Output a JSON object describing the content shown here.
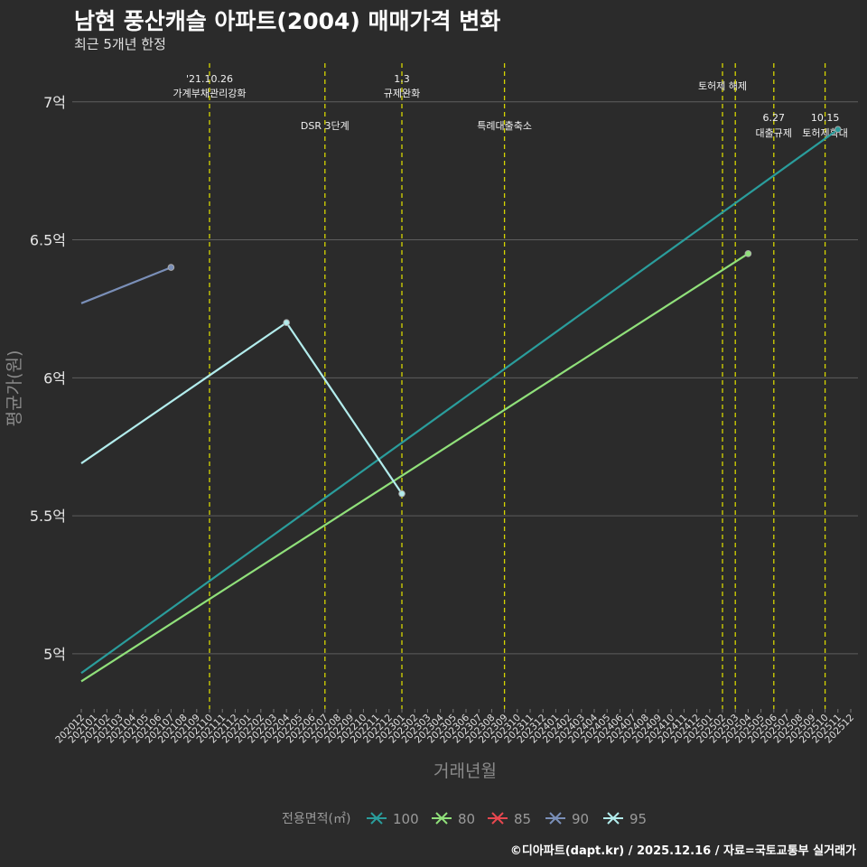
{
  "title": "남현 풍산캐슬 아파트(2004) 매매가격 변화",
  "subtitle": "최근 5개년 한정",
  "footer": "©디아파트(dapt.kr) / 2025.12.16 / 자료=국토교통부 실거래가",
  "chart_data": {
    "type": "line",
    "xlabel": "거래년월",
    "ylabel": "평균가(원)",
    "ylim": [
      4.8,
      7.14
    ],
    "yticks": [
      {
        "value": 5.0,
        "label": "5억"
      },
      {
        "value": 5.5,
        "label": "5.5억"
      },
      {
        "value": 6.0,
        "label": "6억"
      },
      {
        "value": 6.5,
        "label": "6.5억"
      },
      {
        "value": 7.0,
        "label": "7억"
      }
    ],
    "categories": [
      "202012",
      "202101",
      "202102",
      "202103",
      "202104",
      "202105",
      "202106",
      "202107",
      "202108",
      "202109",
      "202110",
      "202111",
      "202112",
      "202201",
      "202202",
      "202203",
      "202204",
      "202205",
      "202206",
      "202207",
      "202208",
      "202209",
      "202210",
      "202211",
      "202212",
      "202301",
      "202302",
      "202303",
      "202304",
      "202305",
      "202306",
      "202307",
      "202308",
      "202309",
      "202310",
      "202311",
      "202312",
      "202401",
      "202402",
      "202403",
      "202404",
      "202405",
      "202406",
      "202407",
      "202408",
      "202409",
      "202410",
      "202411",
      "202412",
      "202501",
      "202502",
      "202503",
      "202504",
      "202505",
      "202506",
      "202507",
      "202508",
      "202509",
      "202510",
      "202511",
      "202512"
    ],
    "legend_title": "전용면적(㎡)",
    "series": [
      {
        "name": "100",
        "color": "#2a9d9c",
        "x": [
          "202012",
          "202511"
        ],
        "values": [
          4.93,
          6.9
        ],
        "end_marker": true
      },
      {
        "name": "80",
        "color": "#90e07a",
        "x": [
          "202012",
          "202504"
        ],
        "values": [
          4.9,
          6.45
        ],
        "end_marker": true
      },
      {
        "name": "85",
        "color": "#e8474f",
        "x": [],
        "values": [],
        "end_marker": false
      },
      {
        "name": "90",
        "color": "#7a8fb8",
        "x": [
          "202012",
          "202107"
        ],
        "values": [
          6.27,
          6.4
        ],
        "end_marker": true
      },
      {
        "name": "95",
        "color": "#b2ecec",
        "x": [
          "202012",
          "202204",
          "202301"
        ],
        "values": [
          5.69,
          6.2,
          5.58
        ],
        "end_marker": true
      }
    ],
    "events": [
      {
        "x": "202110",
        "lines": [
          "'21.10.26",
          "가계부채관리강화"
        ],
        "row": 1
      },
      {
        "x": "202207",
        "lines": [
          "DSR 3단계"
        ],
        "row": 2
      },
      {
        "x": "202301",
        "lines": [
          "1.3",
          "규제완화"
        ],
        "row": 1
      },
      {
        "x": "202309",
        "lines": [
          "특례대출축소"
        ],
        "row": 2
      },
      {
        "x": "202502",
        "lines": [
          "토허제 해제"
        ],
        "row": 0
      },
      {
        "x": "202503",
        "lines": [],
        "row": 0
      },
      {
        "x": "202506",
        "lines": [
          "6.27",
          "대출규제"
        ],
        "row": 3
      },
      {
        "x": "202510",
        "lines": [
          "10.15",
          "토허제확대"
        ],
        "row": 3
      }
    ]
  }
}
